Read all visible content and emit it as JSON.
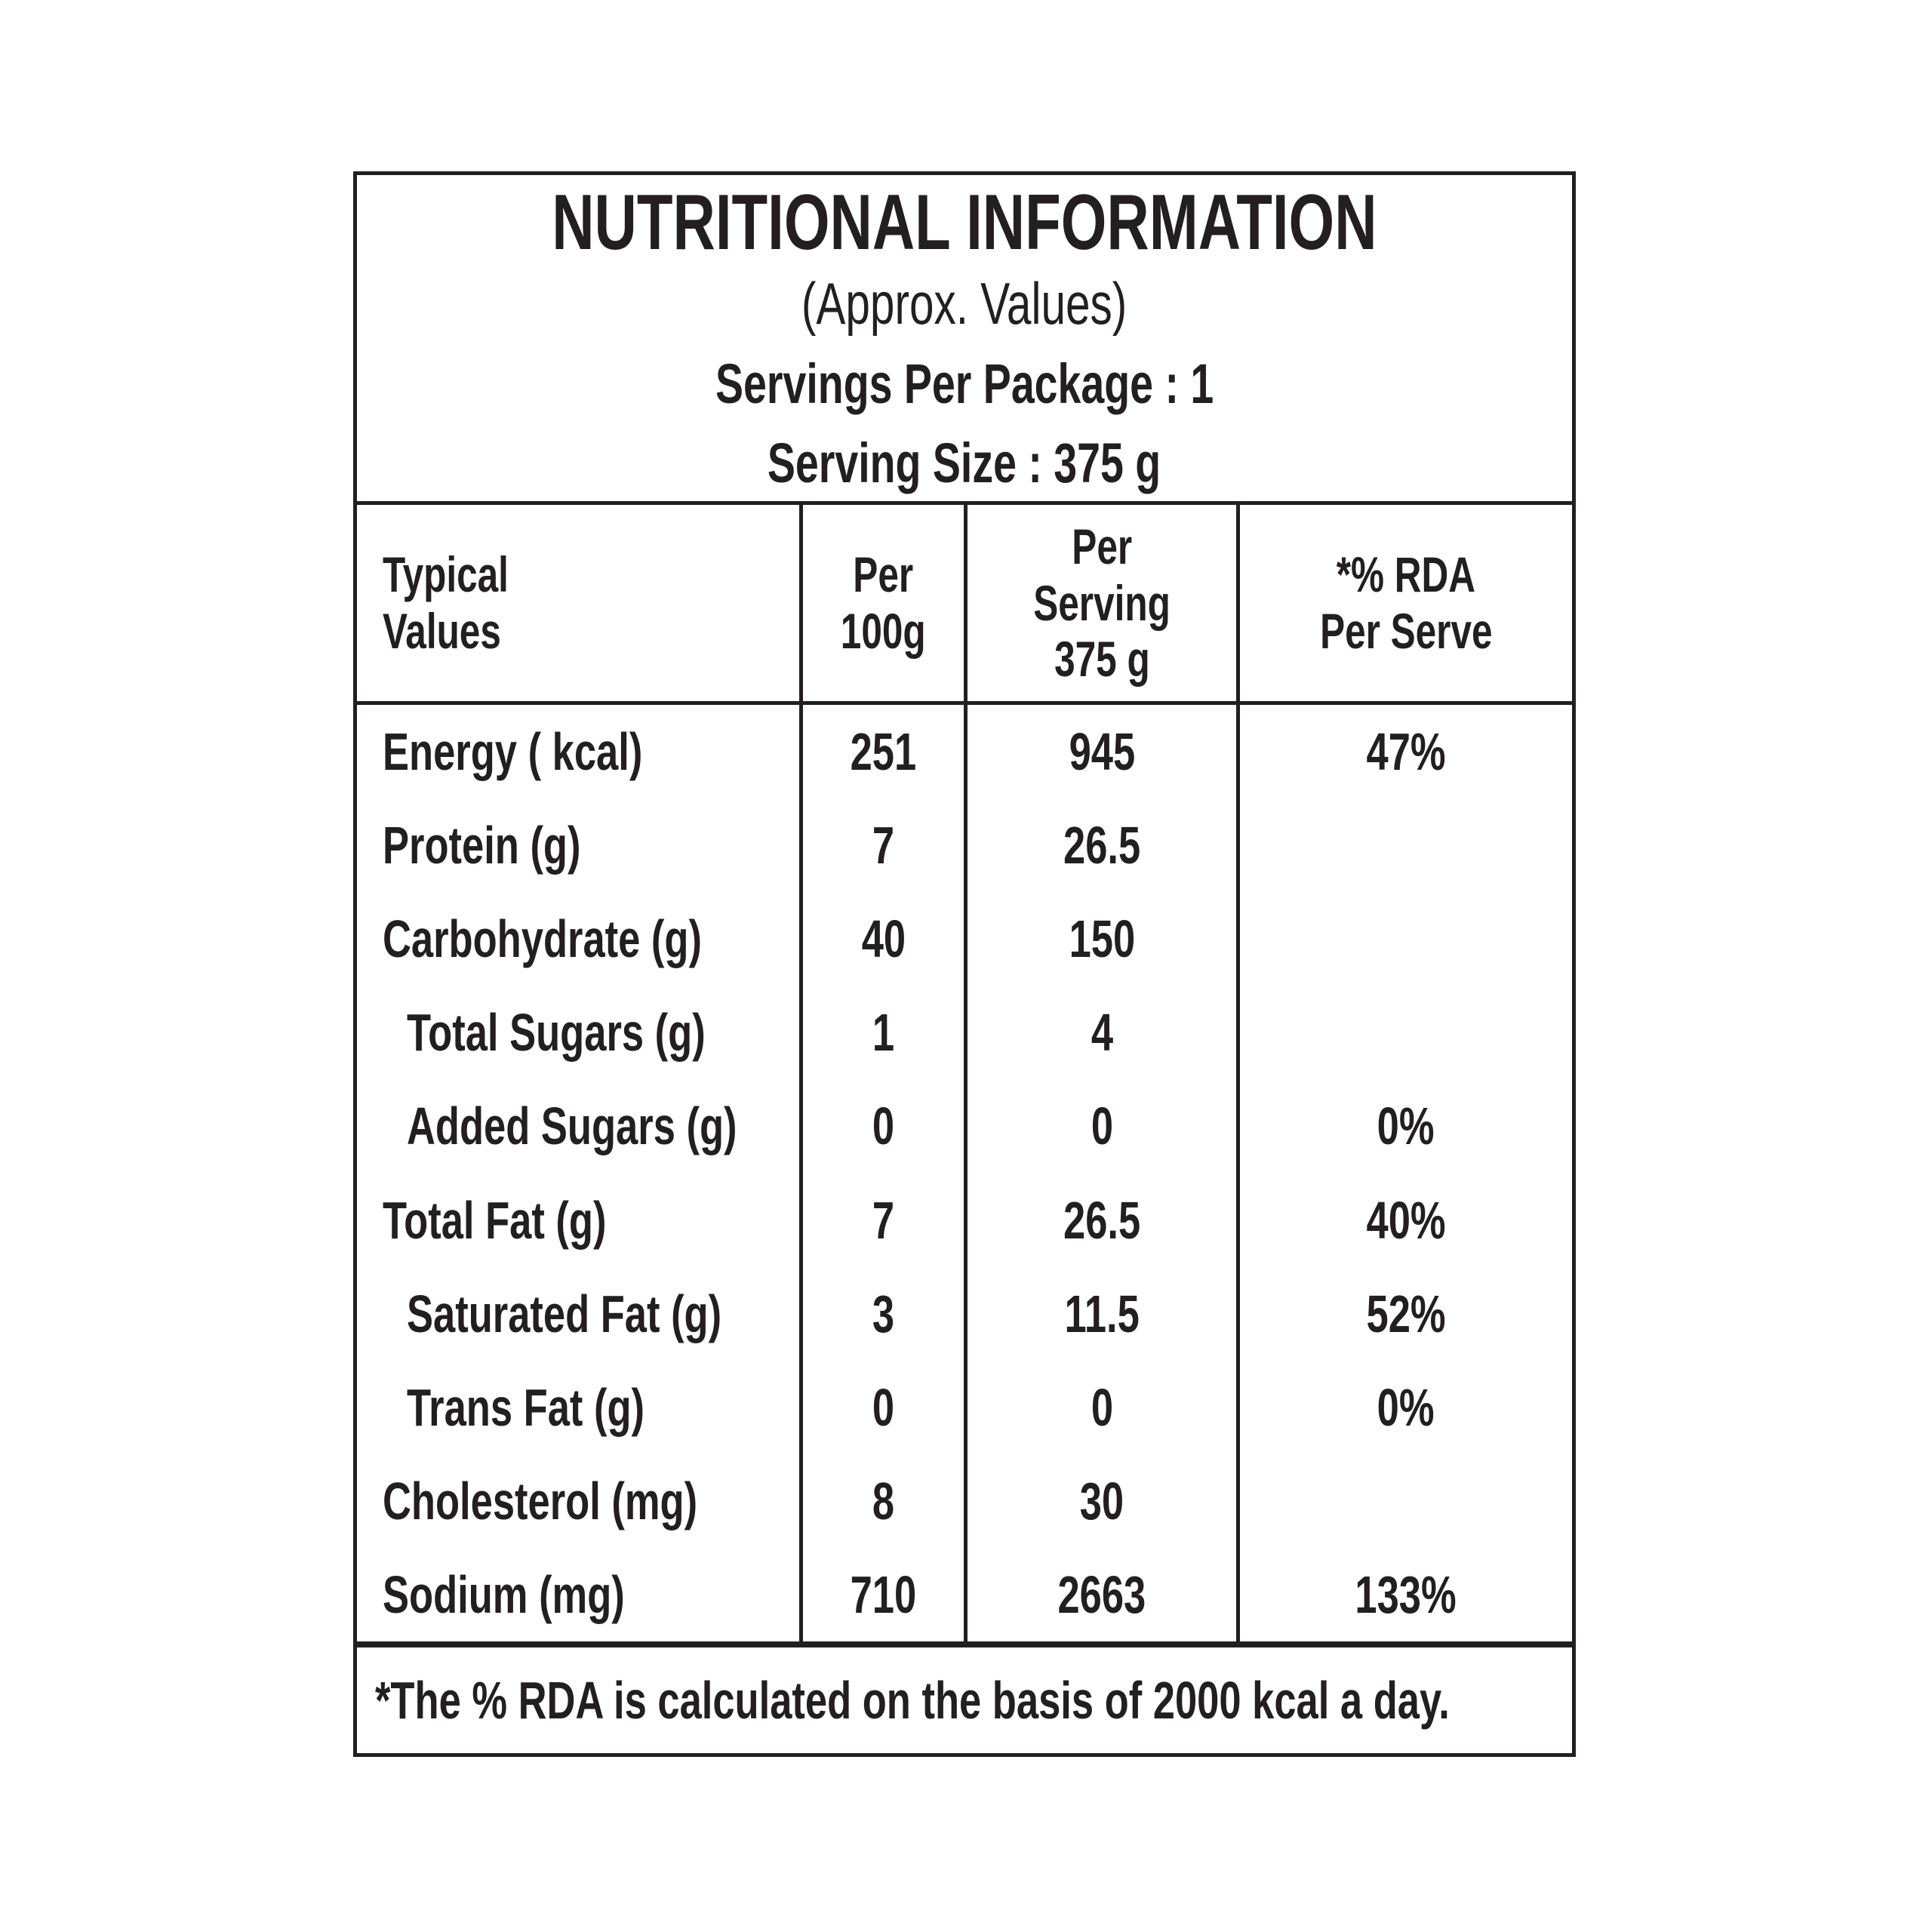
{
  "theme": {
    "text_color": "#231f20",
    "background_color": "#ffffff"
  },
  "label": {
    "title": "NUTRITIONAL INFORMATION",
    "subtitle": "(Approx. Values)",
    "servings_per_package": "Servings Per Package : 1",
    "serving_size": "Serving Size : 375 g",
    "footnote": "*The % RDA is calculated on the basis of 2000 kcal a day."
  },
  "table": {
    "columns": [
      {
        "label": "Typical Values",
        "lines": [
          "Typical",
          "Values"
        ]
      },
      {
        "label": "Per 100g",
        "lines": [
          "Per",
          "100g"
        ]
      },
      {
        "label": "Per Serving 375 g",
        "lines": [
          "Per",
          "Serving",
          "375 g"
        ]
      },
      {
        "label": "*% RDA Per Serve",
        "lines": [
          "*% RDA",
          "Per Serve"
        ]
      }
    ],
    "rows": [
      {
        "name": "Energy ( kcal)",
        "per_100g": "251",
        "per_serving": "945",
        "rda": "47%"
      },
      {
        "name": "Protein (g)",
        "per_100g": "7",
        "per_serving": "26.5",
        "rda": ""
      },
      {
        "name": "Carbohydrate (g)",
        "per_100g": "40",
        "per_serving": "150",
        "rda": ""
      },
      {
        "name": "Total Sugars (g)",
        "per_100g": "1",
        "per_serving": "4",
        "rda": ""
      },
      {
        "name": "Added Sugars (g)",
        "per_100g": "0",
        "per_serving": "0",
        "rda": "0%"
      },
      {
        "name": "Total Fat (g)",
        "per_100g": "7",
        "per_serving": "26.5",
        "rda": "40%"
      },
      {
        "name": "Saturated Fat (g)",
        "per_100g": "3",
        "per_serving": "11.5",
        "rda": "52%"
      },
      {
        "name": "Trans Fat (g)",
        "per_100g": "0",
        "per_serving": "0",
        "rda": "0%"
      },
      {
        "name": "Cholesterol (mg)",
        "per_100g": "8",
        "per_serving": "30",
        "rda": ""
      },
      {
        "name": "Sodium (mg)",
        "per_100g": "710",
        "per_serving": "2663",
        "rda": "133%"
      }
    ]
  }
}
